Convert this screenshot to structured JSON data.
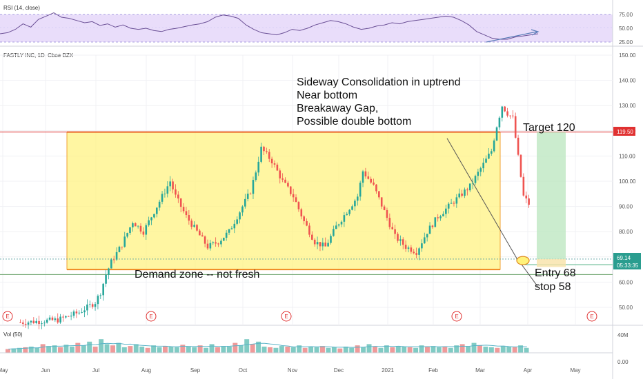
{
  "chart_data": {
    "type": "candlestick",
    "symbol_title": "FASTLY INC, 1D, Cboe BZX",
    "y_ticks": [
      "150.00",
      "140.00",
      "130.00",
      "120.00",
      "110.00",
      "100.00",
      "90.00",
      "80.00",
      "70.00",
      "60.00",
      "50.00"
    ],
    "ylim": [
      40,
      152
    ],
    "x_ticks": [
      "May",
      "Jun",
      "Jul",
      "Aug",
      "Sep",
      "Oct",
      "Nov",
      "Dec",
      "2021",
      "Feb",
      "Mar",
      "Apr",
      "May"
    ],
    "price_tags": {
      "target": "119.50",
      "last": "69.14",
      "countdown": "05:33:35"
    },
    "levels": {
      "zone_top": 119.5,
      "zone_bottom": 65,
      "demand_line": 63,
      "target": 119.5,
      "entry": 68,
      "stop": 58,
      "last": 69.14
    },
    "annotations": {
      "thesis": [
        "Sideway Consolidation in uptrend",
        "Near bottom",
        "Breakaway Gap,",
        "Possible double bottom"
      ],
      "target": "Target  120",
      "demand": "Demand zone -- not fresh",
      "entry": "Entry 68",
      "stop": "stop 58"
    },
    "price_path": [
      [
        0,
        44
      ],
      [
        14,
        45
      ],
      [
        22,
        48
      ],
      [
        28,
        52
      ],
      [
        30,
        56
      ],
      [
        32,
        63
      ],
      [
        34,
        68
      ],
      [
        38,
        75
      ],
      [
        42,
        84
      ],
      [
        46,
        80
      ],
      [
        50,
        88
      ],
      [
        54,
        96
      ],
      [
        56,
        100
      ],
      [
        58,
        94
      ],
      [
        62,
        86
      ],
      [
        66,
        80
      ],
      [
        70,
        74
      ],
      [
        74,
        76
      ],
      [
        78,
        80
      ],
      [
        82,
        88
      ],
      [
        86,
        96
      ],
      [
        88,
        104
      ],
      [
        90,
        113
      ],
      [
        94,
        108
      ],
      [
        98,
        100
      ],
      [
        102,
        94
      ],
      [
        106,
        84
      ],
      [
        110,
        76
      ],
      [
        114,
        74
      ],
      [
        118,
        82
      ],
      [
        122,
        88
      ],
      [
        126,
        94
      ],
      [
        128,
        104
      ],
      [
        132,
        98
      ],
      [
        136,
        88
      ],
      [
        140,
        78
      ],
      [
        144,
        74
      ],
      [
        148,
        72
      ],
      [
        152,
        80
      ],
      [
        156,
        86
      ],
      [
        160,
        90
      ],
      [
        164,
        94
      ],
      [
        168,
        98
      ],
      [
        172,
        105
      ],
      [
        176,
        112
      ],
      [
        178,
        122
      ],
      [
        180,
        130
      ],
      [
        182,
        127
      ],
      [
        184,
        125
      ],
      [
        188,
        94
      ],
      [
        192,
        88
      ],
      [
        196,
        84
      ],
      [
        200,
        80
      ],
      [
        204,
        72
      ],
      [
        208,
        68
      ],
      [
        212,
        66
      ],
      [
        216,
        64
      ],
      [
        220,
        72
      ],
      [
        224,
        76
      ],
      [
        228,
        78
      ],
      [
        232,
        80
      ],
      [
        236,
        83
      ],
      [
        240,
        86
      ],
      [
        244,
        88
      ],
      [
        248,
        92
      ],
      [
        252,
        96
      ],
      [
        256,
        100
      ],
      [
        260,
        104
      ],
      [
        262,
        106
      ],
      [
        266,
        100
      ],
      [
        270,
        95
      ],
      [
        274,
        88
      ],
      [
        278,
        86
      ],
      [
        282,
        84
      ],
      [
        286,
        86
      ],
      [
        290,
        90
      ],
      [
        294,
        96
      ],
      [
        296,
        100
      ],
      [
        300,
        104
      ],
      [
        304,
        108
      ],
      [
        308,
        110
      ],
      [
        312,
        113
      ],
      [
        316,
        116
      ],
      [
        318,
        118
      ],
      [
        320,
        114
      ],
      [
        322,
        108
      ],
      [
        326,
        98
      ],
      [
        330,
        88
      ],
      [
        334,
        80
      ],
      [
        338,
        76
      ],
      [
        342,
        74
      ],
      [
        346,
        70
      ],
      [
        350,
        72
      ],
      [
        354,
        68
      ],
      [
        358,
        70
      ],
      [
        362,
        72
      ],
      [
        366,
        74
      ],
      [
        370,
        70
      ],
      [
        374,
        66
      ],
      [
        378,
        64
      ],
      [
        382,
        68
      ],
      [
        386,
        70
      ]
    ],
    "earnings_label": "E",
    "earnings_x": [
      0,
      117,
      218,
      345,
      437
    ],
    "rsi": {
      "label": "RSI (14, close)",
      "y_ticks": [
        "75.00",
        "50.00",
        "25.00"
      ],
      "values": [
        40,
        42,
        48,
        58,
        52,
        66,
        72,
        78,
        70,
        68,
        64,
        60,
        62,
        55,
        58,
        52,
        56,
        50,
        48,
        50,
        46,
        44,
        48,
        50,
        53,
        56,
        58,
        62,
        70,
        74,
        72,
        68,
        56,
        48,
        42,
        40,
        38,
        42,
        48,
        46,
        50,
        56,
        60,
        64,
        62,
        58,
        52,
        48,
        50,
        54,
        56,
        60,
        58,
        62,
        64,
        66,
        68,
        70,
        72,
        70,
        64,
        56,
        44,
        38,
        32,
        30,
        30,
        34,
        36,
        38,
        40
      ]
    },
    "volume": {
      "label": "Vol (50)",
      "y_ticks": [
        "40M",
        "0.00"
      ],
      "values": [
        6,
        7,
        8,
        9,
        10,
        8,
        14,
        11,
        12,
        9,
        13,
        10,
        16,
        12,
        18,
        10,
        22,
        14,
        12,
        16,
        9,
        11,
        14,
        10,
        8,
        12,
        9,
        11,
        10,
        9,
        13,
        10,
        9,
        12,
        8,
        14,
        9,
        11,
        10,
        16,
        12,
        22,
        14,
        18,
        10,
        9,
        8,
        11,
        10,
        9,
        12,
        8,
        10,
        9,
        11,
        8,
        9,
        7,
        10,
        8,
        12,
        9,
        14,
        10,
        8,
        12,
        9,
        11,
        10,
        9,
        8,
        12,
        10,
        11,
        9,
        10,
        8,
        12,
        14,
        10,
        16,
        12,
        10,
        9,
        8,
        11,
        10,
        9,
        12,
        8
      ]
    }
  }
}
